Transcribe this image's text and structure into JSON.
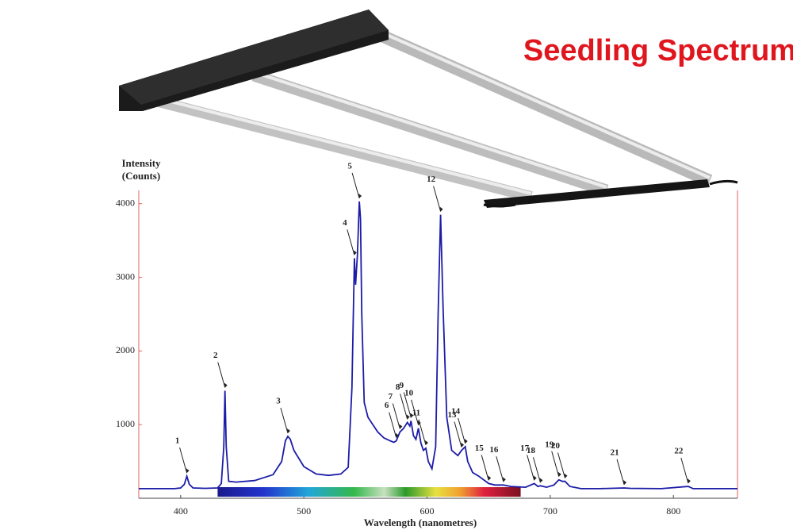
{
  "chart_data": {
    "type": "line",
    "title": "Seedling Spectrum",
    "y_label": "Intensity\n(Counts)",
    "x_label": "Wavelength (nanometres)",
    "color": "#1c1ca8",
    "xlim": [
      366,
      852
    ],
    "ylim": [
      0,
      4180
    ],
    "xticks": [
      400,
      500,
      600,
      700,
      800
    ],
    "yticks": [
      1000,
      2000,
      3000,
      4000
    ],
    "x": [
      366,
      380,
      395,
      400,
      403,
      405,
      407,
      410,
      420,
      430,
      433,
      435,
      436,
      437,
      439,
      445,
      460,
      475,
      482,
      485,
      487,
      489,
      492,
      500,
      510,
      520,
      530,
      536,
      539,
      541,
      542,
      543.5,
      545,
      546,
      547,
      549,
      552,
      556,
      560,
      565,
      570,
      573,
      575,
      578,
      581,
      584,
      586,
      587,
      589,
      591,
      593,
      595,
      597,
      599,
      601,
      604,
      607,
      609,
      611,
      613,
      616,
      620,
      625,
      628,
      631,
      633,
      637,
      642,
      650,
      655,
      662,
      668,
      680,
      687,
      690,
      692,
      697,
      703,
      707,
      710,
      712,
      716,
      725,
      740,
      760,
      765,
      790,
      812,
      816,
      840,
      852
    ],
    "values": [
      130,
      130,
      130,
      140,
      190,
      300,
      190,
      140,
      135,
      140,
      200,
      700,
      1460,
      700,
      230,
      220,
      240,
      320,
      500,
      780,
      840,
      800,
      650,
      430,
      330,
      310,
      330,
      420,
      1500,
      3260,
      2900,
      3300,
      4030,
      3800,
      2500,
      1300,
      1100,
      1000,
      900,
      820,
      780,
      760,
      780,
      900,
      950,
      1030,
      980,
      1050,
      850,
      800,
      950,
      750,
      650,
      680,
      500,
      400,
      700,
      2500,
      3850,
      2600,
      1100,
      650,
      580,
      650,
      700,
      500,
      350,
      300,
      200,
      180,
      180,
      160,
      150,
      200,
      160,
      170,
      150,
      180,
      250,
      230,
      230,
      160,
      130,
      130,
      140,
      135,
      130,
      160,
      130,
      130,
      130
    ],
    "annotations": [
      {
        "label": "1",
        "x": 405,
        "y": 300
      },
      {
        "label": "2",
        "x": 436,
        "y": 1460
      },
      {
        "label": "3",
        "x": 487,
        "y": 840
      },
      {
        "label": "4",
        "x": 541,
        "y": 3260
      },
      {
        "label": "5",
        "x": 545,
        "y": 4030
      },
      {
        "label": "6",
        "x": 575,
        "y": 780
      },
      {
        "label": "7",
        "x": 578,
        "y": 900
      },
      {
        "label": "8",
        "x": 584,
        "y": 1030
      },
      {
        "label": "9",
        "x": 587,
        "y": 1050
      },
      {
        "label": "10",
        "x": 593,
        "y": 950
      },
      {
        "label": "11",
        "x": 599,
        "y": 680
      },
      {
        "label": "12",
        "x": 611,
        "y": 3850
      },
      {
        "label": "13",
        "x": 628,
        "y": 650
      },
      {
        "label": "14",
        "x": 631,
        "y": 700
      },
      {
        "label": "15",
        "x": 650,
        "y": 200
      },
      {
        "label": "16",
        "x": 662,
        "y": 180
      },
      {
        "label": "17",
        "x": 687,
        "y": 200
      },
      {
        "label": "18",
        "x": 692,
        "y": 170
      },
      {
        "label": "19",
        "x": 707,
        "y": 250
      },
      {
        "label": "20",
        "x": 712,
        "y": 230
      },
      {
        "label": "21",
        "x": 760,
        "y": 140
      },
      {
        "label": "22",
        "x": 812,
        "y": 160
      }
    ]
  }
}
